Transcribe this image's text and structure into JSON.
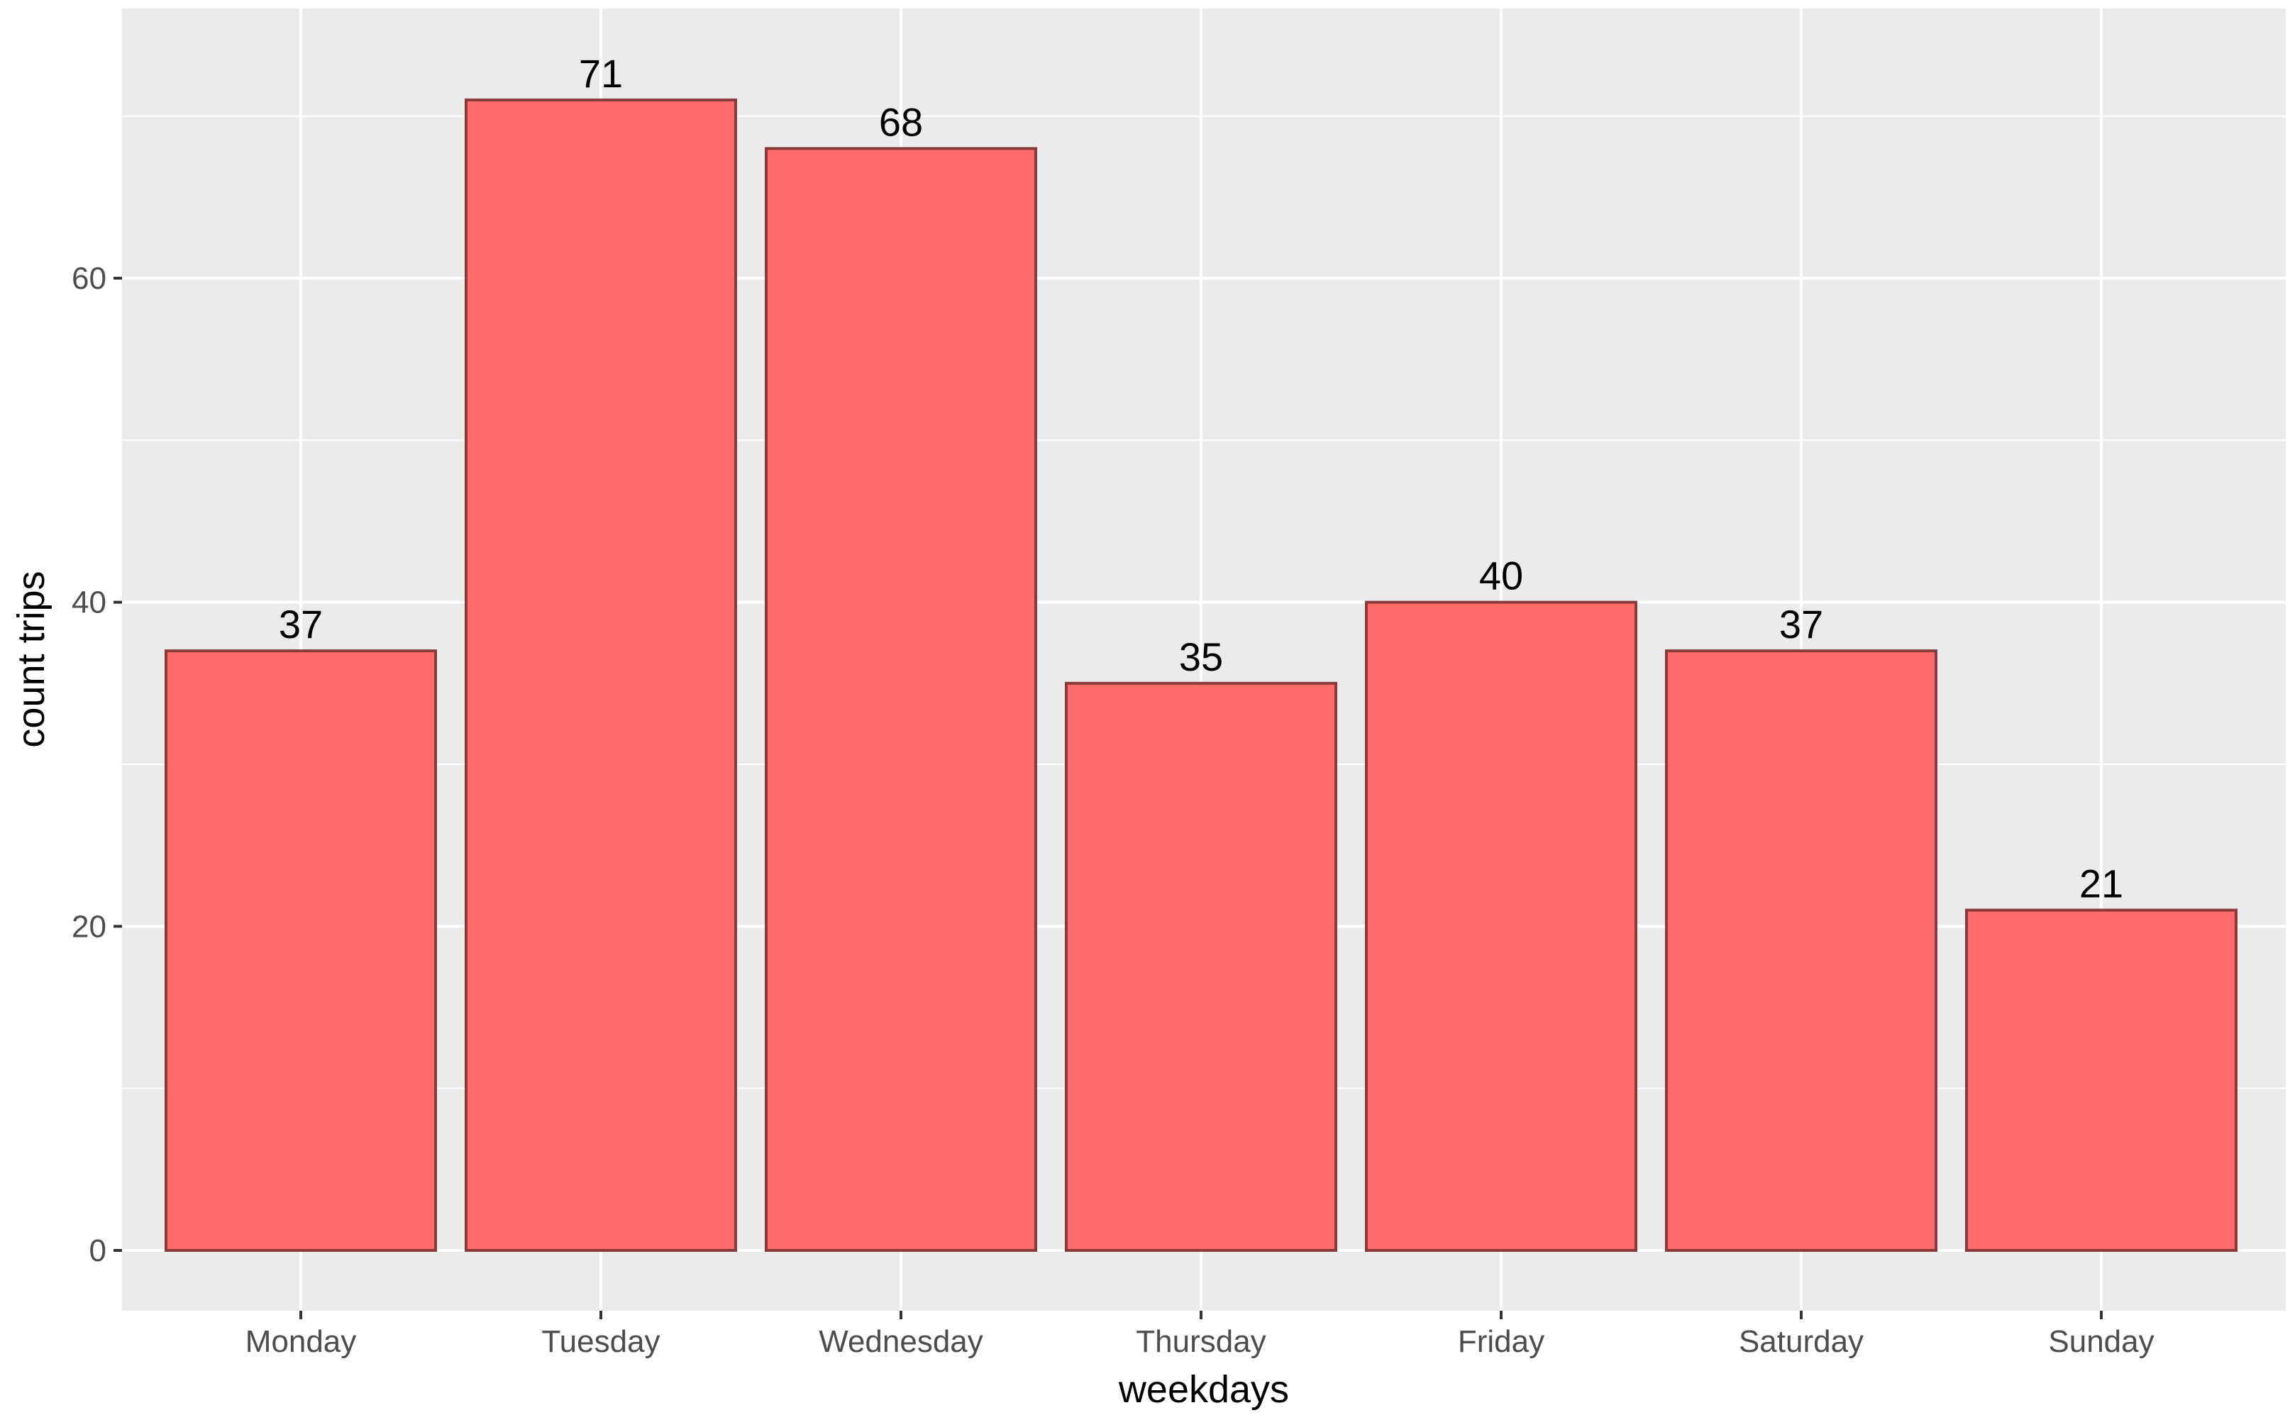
{
  "chart_data": {
    "type": "bar",
    "title": "",
    "xlabel": "weekdays",
    "ylabel": "count trips",
    "categories": [
      "Monday",
      "Tuesday",
      "Wednesday",
      "Thursday",
      "Friday",
      "Saturday",
      "Sunday"
    ],
    "values": [
      37,
      71,
      68,
      35,
      40,
      37,
      21
    ],
    "ylim": [
      0,
      75
    ],
    "yticks": [
      0,
      20,
      40,
      60
    ],
    "grid": true,
    "legend": "none",
    "colors": {
      "panel_background": "#ebebeb",
      "grid": "#ffffff",
      "bar_fill": "#ff6b6b",
      "bar_outline": "#8b3a3a",
      "axis_tick": "#333333"
    }
  }
}
